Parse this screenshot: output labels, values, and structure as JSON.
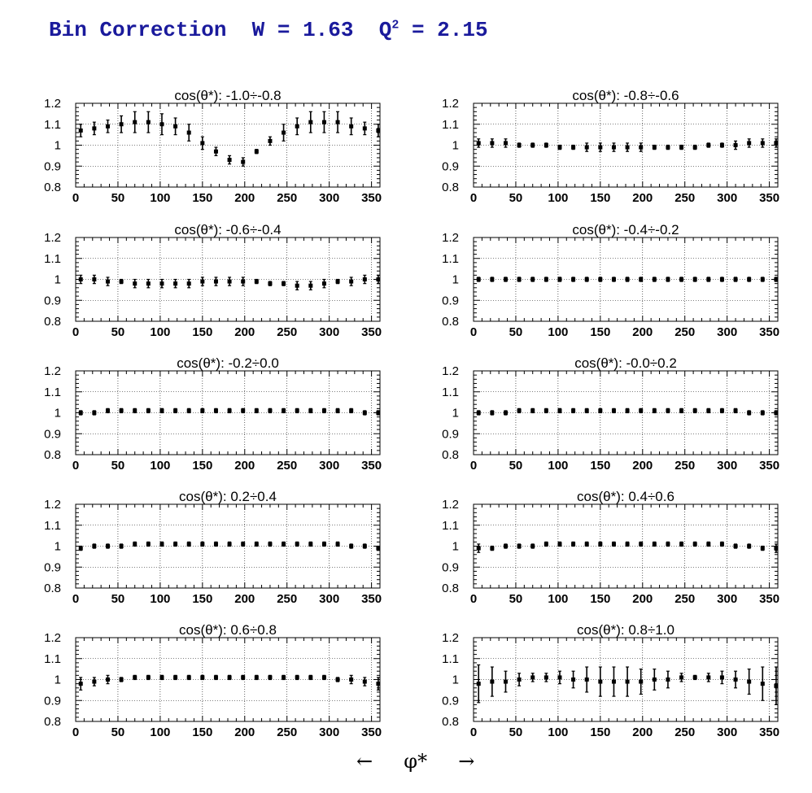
{
  "title": {
    "main": "Bin Correction",
    "w_label": "W = 1.63",
    "q_label": "Q",
    "q_sup": "2",
    "q_value": "= 2.15"
  },
  "xaxis_label": {
    "left_arrow": "←",
    "symbol": "φ*",
    "right_arrow": "→"
  },
  "chart_data": [
    {
      "type": "scatter",
      "title": "cos(θ*): -1.0÷-0.8",
      "xlim": [
        0,
        360
      ],
      "ylim": [
        0.8,
        1.2
      ],
      "xticks": [
        0,
        50,
        100,
        150,
        200,
        250,
        300,
        350
      ],
      "yticks": [
        "0.8",
        "0.9",
        "1",
        "1.1",
        "1.2"
      ],
      "grid": true,
      "x": [
        6,
        22,
        38,
        54,
        70,
        86,
        102,
        118,
        134,
        150,
        166,
        182,
        198,
        214,
        230,
        246,
        262,
        278,
        294,
        310,
        326,
        342,
        358
      ],
      "y": [
        1.07,
        1.08,
        1.09,
        1.1,
        1.11,
        1.11,
        1.1,
        1.09,
        1.06,
        1.01,
        0.97,
        0.93,
        0.92,
        0.97,
        1.02,
        1.06,
        1.09,
        1.11,
        1.11,
        1.11,
        1.09,
        1.08,
        1.07
      ],
      "yerr": [
        0.03,
        0.03,
        0.03,
        0.04,
        0.05,
        0.05,
        0.05,
        0.04,
        0.04,
        0.03,
        0.02,
        0.02,
        0.02,
        0.01,
        0.02,
        0.04,
        0.04,
        0.05,
        0.05,
        0.05,
        0.04,
        0.03,
        0.03
      ]
    },
    {
      "type": "scatter",
      "title": "cos(θ*): -0.8÷-0.6",
      "xlim": [
        0,
        360
      ],
      "ylim": [
        0.8,
        1.2
      ],
      "xticks": [
        0,
        50,
        100,
        150,
        200,
        250,
        300,
        350
      ],
      "yticks": [
        "0.8",
        "0.9",
        "1",
        "1.1",
        "1.2"
      ],
      "grid": true,
      "x": [
        6,
        22,
        38,
        54,
        70,
        86,
        102,
        118,
        134,
        150,
        166,
        182,
        198,
        214,
        230,
        246,
        262,
        278,
        294,
        310,
        326,
        342,
        358
      ],
      "y": [
        1.01,
        1.01,
        1.01,
        1.0,
        1.0,
        1.0,
        0.99,
        0.99,
        0.99,
        0.99,
        0.99,
        0.99,
        0.99,
        0.99,
        0.99,
        0.99,
        0.99,
        1.0,
        1.0,
        1.0,
        1.01,
        1.01,
        1.01
      ],
      "yerr": [
        0.02,
        0.02,
        0.02,
        0.01,
        0.01,
        0.01,
        0.01,
        0.01,
        0.02,
        0.02,
        0.02,
        0.02,
        0.02,
        0.01,
        0.01,
        0.01,
        0.01,
        0.01,
        0.01,
        0.02,
        0.02,
        0.02,
        0.02
      ]
    },
    {
      "type": "scatter",
      "title": "cos(θ*): -0.6÷-0.4",
      "xlim": [
        0,
        360
      ],
      "ylim": [
        0.8,
        1.2
      ],
      "xticks": [
        0,
        50,
        100,
        150,
        200,
        250,
        300,
        350
      ],
      "yticks": [
        "0.8",
        "0.9",
        "1",
        "1.1",
        "1.2"
      ],
      "grid": true,
      "x": [
        6,
        22,
        38,
        54,
        70,
        86,
        102,
        118,
        134,
        150,
        166,
        182,
        198,
        214,
        230,
        246,
        262,
        278,
        294,
        310,
        326,
        342,
        358
      ],
      "y": [
        1.0,
        1.0,
        0.99,
        0.99,
        0.98,
        0.98,
        0.98,
        0.98,
        0.98,
        0.99,
        0.99,
        0.99,
        0.99,
        0.99,
        0.98,
        0.98,
        0.97,
        0.97,
        0.98,
        0.99,
        0.99,
        1.0,
        1.0
      ],
      "yerr": [
        0.02,
        0.02,
        0.02,
        0.01,
        0.02,
        0.02,
        0.02,
        0.02,
        0.02,
        0.02,
        0.02,
        0.02,
        0.02,
        0.01,
        0.01,
        0.01,
        0.02,
        0.02,
        0.02,
        0.01,
        0.02,
        0.02,
        0.02
      ]
    },
    {
      "type": "scatter",
      "title": "cos(θ*): -0.4÷-0.2",
      "xlim": [
        0,
        360
      ],
      "ylim": [
        0.8,
        1.2
      ],
      "xticks": [
        0,
        50,
        100,
        150,
        200,
        250,
        300,
        350
      ],
      "yticks": [
        "0.8",
        "0.9",
        "1",
        "1.1",
        "1.2"
      ],
      "grid": true,
      "x": [
        6,
        22,
        38,
        54,
        70,
        86,
        102,
        118,
        134,
        150,
        166,
        182,
        198,
        214,
        230,
        246,
        262,
        278,
        294,
        310,
        326,
        342,
        358
      ],
      "y": [
        1.0,
        1.0,
        1.0,
        1.0,
        1.0,
        1.0,
        1.0,
        1.0,
        1.0,
        1.0,
        1.0,
        1.0,
        1.0,
        1.0,
        1.0,
        1.0,
        1.0,
        1.0,
        1.0,
        1.0,
        1.0,
        1.0,
        1.0
      ],
      "yerr": [
        0.01,
        0.01,
        0.01,
        0.01,
        0.01,
        0.01,
        0.01,
        0.01,
        0.01,
        0.01,
        0.01,
        0.01,
        0.01,
        0.01,
        0.01,
        0.01,
        0.01,
        0.01,
        0.01,
        0.01,
        0.01,
        0.01,
        0.01
      ]
    },
    {
      "type": "scatter",
      "title": "cos(θ*): -0.2÷0.0",
      "xlim": [
        0,
        360
      ],
      "ylim": [
        0.8,
        1.2
      ],
      "xticks": [
        0,
        50,
        100,
        150,
        200,
        250,
        300,
        350
      ],
      "yticks": [
        "0.8",
        "0.9",
        "1",
        "1.1",
        "1.2"
      ],
      "grid": true,
      "x": [
        6,
        22,
        38,
        54,
        70,
        86,
        102,
        118,
        134,
        150,
        166,
        182,
        198,
        214,
        230,
        246,
        262,
        278,
        294,
        310,
        326,
        342,
        358
      ],
      "y": [
        1.0,
        1.0,
        1.01,
        1.01,
        1.01,
        1.01,
        1.01,
        1.01,
        1.01,
        1.01,
        1.01,
        1.01,
        1.01,
        1.01,
        1.01,
        1.01,
        1.01,
        1.01,
        1.01,
        1.01,
        1.01,
        1.0,
        1.0
      ],
      "yerr": [
        0.01,
        0.01,
        0.01,
        0.01,
        0.01,
        0.01,
        0.01,
        0.01,
        0.01,
        0.01,
        0.01,
        0.01,
        0.01,
        0.01,
        0.01,
        0.01,
        0.01,
        0.01,
        0.01,
        0.01,
        0.01,
        0.01,
        0.01
      ]
    },
    {
      "type": "scatter",
      "title": "cos(θ*): -0.0÷0.2",
      "xlim": [
        0,
        360
      ],
      "ylim": [
        0.8,
        1.2
      ],
      "xticks": [
        0,
        50,
        100,
        150,
        200,
        250,
        300,
        350
      ],
      "yticks": [
        "0.8",
        "0.9",
        "1",
        "1.1",
        "1.2"
      ],
      "grid": true,
      "x": [
        6,
        22,
        38,
        54,
        70,
        86,
        102,
        118,
        134,
        150,
        166,
        182,
        198,
        214,
        230,
        246,
        262,
        278,
        294,
        310,
        326,
        342,
        358
      ],
      "y": [
        1.0,
        1.0,
        1.0,
        1.01,
        1.01,
        1.01,
        1.01,
        1.01,
        1.01,
        1.01,
        1.01,
        1.01,
        1.01,
        1.01,
        1.01,
        1.01,
        1.01,
        1.01,
        1.01,
        1.01,
        1.0,
        1.0,
        1.0
      ],
      "yerr": [
        0.01,
        0.01,
        0.01,
        0.01,
        0.01,
        0.01,
        0.01,
        0.01,
        0.01,
        0.01,
        0.01,
        0.01,
        0.01,
        0.01,
        0.01,
        0.01,
        0.01,
        0.01,
        0.01,
        0.01,
        0.01,
        0.01,
        0.01
      ]
    },
    {
      "type": "scatter",
      "title": "cos(θ*): 0.2÷0.4",
      "xlim": [
        0,
        360
      ],
      "ylim": [
        0.8,
        1.2
      ],
      "xticks": [
        0,
        50,
        100,
        150,
        200,
        250,
        300,
        350
      ],
      "yticks": [
        "0.8",
        "0.9",
        "1",
        "1.1",
        "1.2"
      ],
      "grid": true,
      "x": [
        6,
        22,
        38,
        54,
        70,
        86,
        102,
        118,
        134,
        150,
        166,
        182,
        198,
        214,
        230,
        246,
        262,
        278,
        294,
        310,
        326,
        342,
        358
      ],
      "y": [
        0.99,
        1.0,
        1.0,
        1.0,
        1.01,
        1.01,
        1.01,
        1.01,
        1.01,
        1.01,
        1.01,
        1.01,
        1.01,
        1.01,
        1.01,
        1.01,
        1.01,
        1.01,
        1.01,
        1.01,
        1.0,
        1.0,
        0.99
      ],
      "yerr": [
        0.01,
        0.01,
        0.01,
        0.01,
        0.01,
        0.01,
        0.01,
        0.01,
        0.01,
        0.01,
        0.01,
        0.01,
        0.01,
        0.01,
        0.01,
        0.01,
        0.01,
        0.01,
        0.01,
        0.01,
        0.01,
        0.01,
        0.01
      ]
    },
    {
      "type": "scatter",
      "title": "cos(θ*): 0.4÷0.6",
      "xlim": [
        0,
        360
      ],
      "ylim": [
        0.8,
        1.2
      ],
      "xticks": [
        0,
        50,
        100,
        150,
        200,
        250,
        300,
        350
      ],
      "yticks": [
        "0.8",
        "0.9",
        "1",
        "1.1",
        "1.2"
      ],
      "grid": true,
      "x": [
        6,
        22,
        38,
        54,
        70,
        86,
        102,
        118,
        134,
        150,
        166,
        182,
        198,
        214,
        230,
        246,
        262,
        278,
        294,
        310,
        326,
        342,
        358
      ],
      "y": [
        0.99,
        0.99,
        1.0,
        1.0,
        1.0,
        1.01,
        1.01,
        1.01,
        1.01,
        1.01,
        1.01,
        1.01,
        1.01,
        1.01,
        1.01,
        1.01,
        1.01,
        1.01,
        1.01,
        1.0,
        1.0,
        0.99,
        0.99
      ],
      "yerr": [
        0.02,
        0.01,
        0.01,
        0.01,
        0.01,
        0.01,
        0.01,
        0.01,
        0.01,
        0.01,
        0.01,
        0.01,
        0.01,
        0.01,
        0.01,
        0.01,
        0.01,
        0.01,
        0.01,
        0.01,
        0.01,
        0.01,
        0.02
      ]
    },
    {
      "type": "scatter",
      "title": "cos(θ*): 0.6÷0.8",
      "xlim": [
        0,
        360
      ],
      "ylim": [
        0.8,
        1.2
      ],
      "xticks": [
        0,
        50,
        100,
        150,
        200,
        250,
        300,
        350
      ],
      "yticks": [
        "0.8",
        "0.9",
        "1",
        "1.1",
        "1.2"
      ],
      "grid": true,
      "x": [
        6,
        22,
        38,
        54,
        70,
        86,
        102,
        118,
        134,
        150,
        166,
        182,
        198,
        214,
        230,
        246,
        262,
        278,
        294,
        310,
        326,
        342,
        358
      ],
      "y": [
        0.98,
        0.99,
        1.0,
        1.0,
        1.01,
        1.01,
        1.01,
        1.01,
        1.01,
        1.01,
        1.01,
        1.01,
        1.01,
        1.01,
        1.01,
        1.01,
        1.01,
        1.01,
        1.01,
        1.0,
        1.0,
        0.99,
        0.98
      ],
      "yerr": [
        0.03,
        0.02,
        0.02,
        0.01,
        0.01,
        0.01,
        0.01,
        0.01,
        0.01,
        0.01,
        0.01,
        0.01,
        0.01,
        0.01,
        0.01,
        0.01,
        0.01,
        0.01,
        0.01,
        0.01,
        0.02,
        0.02,
        0.03
      ]
    },
    {
      "type": "scatter",
      "title": "cos(θ*): 0.8÷1.0",
      "xlim": [
        0,
        360
      ],
      "ylim": [
        0.8,
        1.2
      ],
      "xticks": [
        0,
        50,
        100,
        150,
        200,
        250,
        300,
        350
      ],
      "yticks": [
        "0.8",
        "0.9",
        "1",
        "1.1",
        "1.2"
      ],
      "grid": true,
      "x": [
        6,
        22,
        38,
        54,
        70,
        86,
        102,
        118,
        134,
        150,
        166,
        182,
        198,
        214,
        230,
        246,
        262,
        278,
        294,
        310,
        326,
        342,
        358
      ],
      "y": [
        0.98,
        0.99,
        0.99,
        1.0,
        1.01,
        1.01,
        1.01,
        1.0,
        1.0,
        0.99,
        0.99,
        0.99,
        0.99,
        1.0,
        1.0,
        1.01,
        1.01,
        1.01,
        1.01,
        1.0,
        0.99,
        0.98,
        0.97
      ],
      "yerr": [
        0.09,
        0.07,
        0.05,
        0.03,
        0.02,
        0.02,
        0.03,
        0.04,
        0.06,
        0.07,
        0.07,
        0.07,
        0.06,
        0.05,
        0.04,
        0.02,
        0.01,
        0.02,
        0.03,
        0.04,
        0.06,
        0.08,
        0.09
      ]
    }
  ]
}
